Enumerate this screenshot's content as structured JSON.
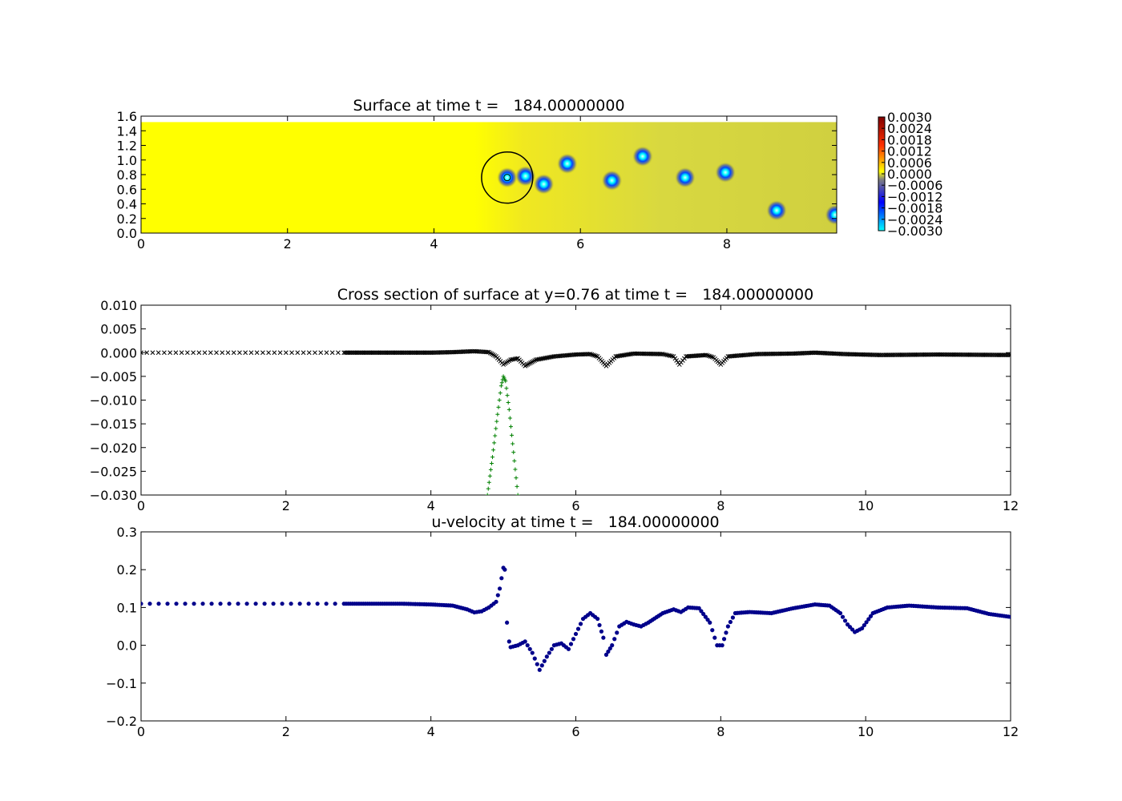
{
  "figure": {
    "background": "#ffffff",
    "colormap": [
      "#00ffff",
      "#0000ff",
      "#808080",
      "#ffff00",
      "#ff0000",
      "#800000"
    ]
  },
  "chart_data": [
    {
      "type": "heatmap",
      "title": "Surface at time t =   184.00000000",
      "xlabel": "",
      "ylabel": "",
      "xlim": [
        0,
        9.5
      ],
      "ylim": [
        0,
        1.6
      ],
      "x_ticks": [
        "0",
        "2",
        "4",
        "6",
        "8"
      ],
      "x_tick_values": [
        0,
        2,
        4,
        6,
        8
      ],
      "y_ticks": [
        "0.0",
        "0.2",
        "0.4",
        "0.6",
        "0.8",
        "1.0",
        "1.2",
        "1.4",
        "1.6"
      ],
      "y_tick_values": [
        0,
        0.2,
        0.4,
        0.6,
        0.8,
        1.0,
        1.2,
        1.4,
        1.6
      ],
      "domain_ymax": 1.52,
      "colorbar": {
        "range": [
          -0.003,
          0.003
        ],
        "ticks": [
          "0.0030",
          "0.0024",
          "0.0018",
          "0.0012",
          "0.0006",
          "0.0000",
          "−0.0006",
          "−0.0012",
          "−0.0018",
          "−0.0024",
          "−0.0030"
        ],
        "tick_values": [
          0.003,
          0.0024,
          0.0018,
          0.0012,
          0.0006,
          0,
          -0.0006,
          -0.0012,
          -0.0018,
          -0.0024,
          -0.003
        ]
      },
      "depressions": [
        {
          "x": 5.0,
          "y": 0.76
        },
        {
          "x": 5.25,
          "y": 0.78
        },
        {
          "x": 5.5,
          "y": 0.67
        },
        {
          "x": 5.82,
          "y": 0.95
        },
        {
          "x": 6.43,
          "y": 0.72
        },
        {
          "x": 6.85,
          "y": 1.05
        },
        {
          "x": 7.43,
          "y": 0.76
        },
        {
          "x": 7.98,
          "y": 0.83
        },
        {
          "x": 8.68,
          "y": 0.31
        },
        {
          "x": 9.48,
          "y": 0.25
        }
      ],
      "obstacle_circle": {
        "x": 5.0,
        "y": 0.76,
        "r": 0.35
      }
    },
    {
      "type": "scatter",
      "title": "Cross section of surface at y=0.76 at time t =   184.00000000",
      "xlabel": "",
      "ylabel": "",
      "xlim": [
        0,
        12
      ],
      "ylim": [
        -0.03,
        0.01
      ],
      "x_ticks": [
        "0",
        "2",
        "4",
        "6",
        "8",
        "10",
        "12"
      ],
      "x_tick_values": [
        0,
        2,
        4,
        6,
        8,
        10,
        12
      ],
      "y_ticks": [
        "0.010",
        "0.005",
        "0.000",
        "−0.005",
        "−0.010",
        "−0.015",
        "−0.020",
        "−0.025",
        "−0.030"
      ],
      "y_tick_values": [
        0.01,
        0.005,
        0,
        -0.005,
        -0.01,
        -0.015,
        -0.02,
        -0.025,
        -0.03
      ],
      "series": [
        {
          "marker": "x",
          "color": "#000000",
          "points": [
            [
              0.0,
              0.0
            ],
            [
              2.8,
              0.0
            ],
            [
              3.5,
              0.0
            ],
            [
              4.0,
              0.0
            ],
            [
              4.3,
              0.0001
            ],
            [
              4.6,
              0.0003
            ],
            [
              4.8,
              0.0001
            ],
            [
              4.9,
              -0.0008
            ],
            [
              5.0,
              -0.0025
            ],
            [
              5.1,
              -0.0015
            ],
            [
              5.2,
              -0.0012
            ],
            [
              5.3,
              -0.0028
            ],
            [
              5.45,
              -0.0015
            ],
            [
              5.7,
              -0.0008
            ],
            [
              6.0,
              -0.0004
            ],
            [
              6.2,
              -0.0003
            ],
            [
              6.3,
              -0.0008
            ],
            [
              6.42,
              -0.0028
            ],
            [
              6.55,
              -0.0008
            ],
            [
              6.8,
              -0.0002
            ],
            [
              7.2,
              -0.0003
            ],
            [
              7.35,
              -0.0008
            ],
            [
              7.43,
              -0.0025
            ],
            [
              7.52,
              -0.0008
            ],
            [
              7.8,
              -0.0005
            ],
            [
              7.9,
              -0.001
            ],
            [
              8.0,
              -0.0025
            ],
            [
              8.1,
              -0.0008
            ],
            [
              8.5,
              -0.0003
            ],
            [
              9.0,
              -0.0002
            ],
            [
              9.3,
              0.0
            ],
            [
              9.7,
              -0.0003
            ],
            [
              10.2,
              -0.0005
            ],
            [
              11.0,
              -0.0004
            ],
            [
              12.0,
              -0.0005
            ]
          ]
        },
        {
          "marker": "+",
          "color": "#008000",
          "points": [
            [
              4.78,
              -0.03
            ],
            [
              4.85,
              -0.022
            ],
            [
              4.92,
              -0.013
            ],
            [
              4.97,
              -0.007
            ],
            [
              5.0,
              -0.005
            ],
            [
              5.03,
              -0.006
            ],
            [
              5.08,
              -0.012
            ],
            [
              5.14,
              -0.021
            ],
            [
              5.2,
              -0.03
            ]
          ]
        }
      ]
    },
    {
      "type": "scatter",
      "title": "u-velocity at time t =   184.00000000",
      "xlabel": "",
      "ylabel": "",
      "xlim": [
        0,
        12
      ],
      "ylim": [
        -0.2,
        0.3
      ],
      "x_ticks": [
        "0",
        "2",
        "4",
        "6",
        "8",
        "10",
        "12"
      ],
      "x_tick_values": [
        0,
        2,
        4,
        6,
        8,
        10,
        12
      ],
      "y_ticks": [
        "0.3",
        "0.2",
        "0.1",
        "0.0",
        "−0.1",
        "−0.2"
      ],
      "y_tick_values": [
        0.3,
        0.2,
        0.1,
        0.0,
        -0.1,
        -0.2
      ],
      "series": [
        {
          "marker": "o",
          "color": "#00008b",
          "points": [
            [
              0.0,
              0.11
            ],
            [
              2.8,
              0.11
            ],
            [
              3.6,
              0.11
            ],
            [
              4.0,
              0.108
            ],
            [
              4.3,
              0.105
            ],
            [
              4.5,
              0.095
            ],
            [
              4.6,
              0.087
            ],
            [
              4.7,
              0.09
            ],
            [
              4.8,
              0.1
            ],
            [
              4.9,
              0.115
            ],
            [
              4.95,
              0.15
            ],
            [
              5.0,
              0.205
            ],
            [
              5.02,
              0.2
            ],
            [
              5.05,
              0.06
            ],
            [
              5.08,
              0.01
            ],
            [
              5.1,
              -0.005
            ],
            [
              5.2,
              0.0
            ],
            [
              5.3,
              0.01
            ],
            [
              5.4,
              -0.02
            ],
            [
              5.5,
              -0.065
            ],
            [
              5.6,
              -0.03
            ],
            [
              5.7,
              0.0
            ],
            [
              5.8,
              0.005
            ],
            [
              5.9,
              -0.01
            ],
            [
              6.0,
              0.03
            ],
            [
              6.1,
              0.07
            ],
            [
              6.2,
              0.085
            ],
            [
              6.3,
              0.07
            ],
            [
              6.38,
              0.02
            ],
            [
              6.42,
              -0.025
            ],
            [
              6.5,
              0.0
            ],
            [
              6.6,
              0.05
            ],
            [
              6.7,
              0.062
            ],
            [
              6.8,
              0.055
            ],
            [
              6.9,
              0.05
            ],
            [
              7.0,
              0.06
            ],
            [
              7.2,
              0.085
            ],
            [
              7.35,
              0.095
            ],
            [
              7.45,
              0.088
            ],
            [
              7.55,
              0.1
            ],
            [
              7.7,
              0.098
            ],
            [
              7.85,
              0.06
            ],
            [
              7.95,
              0.0
            ],
            [
              8.02,
              0.0
            ],
            [
              8.1,
              0.05
            ],
            [
              8.2,
              0.085
            ],
            [
              8.4,
              0.088
            ],
            [
              8.7,
              0.085
            ],
            [
              9.0,
              0.098
            ],
            [
              9.3,
              0.108
            ],
            [
              9.5,
              0.105
            ],
            [
              9.65,
              0.085
            ],
            [
              9.75,
              0.055
            ],
            [
              9.85,
              0.035
            ],
            [
              9.95,
              0.045
            ],
            [
              10.1,
              0.085
            ],
            [
              10.3,
              0.1
            ],
            [
              10.6,
              0.105
            ],
            [
              11.0,
              0.1
            ],
            [
              11.4,
              0.098
            ],
            [
              11.7,
              0.083
            ],
            [
              12.0,
              0.075
            ]
          ]
        }
      ]
    }
  ]
}
